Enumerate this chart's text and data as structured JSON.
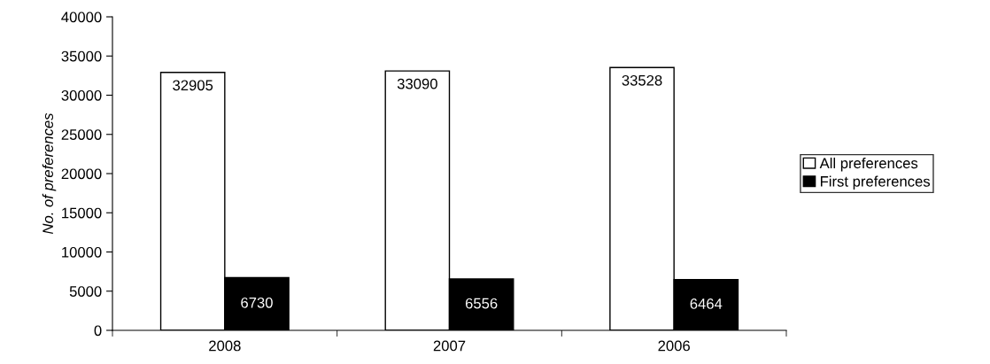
{
  "chart_data": {
    "type": "bar",
    "ylabel": "No. of preferences",
    "categories": [
      "2008",
      "2007",
      "2006"
    ],
    "series": [
      {
        "name": "All preferences",
        "color": "#ffffff",
        "values": [
          32905,
          33090,
          33528
        ]
      },
      {
        "name": "First preferences",
        "color": "#000000",
        "values": [
          6730,
          6556,
          6464
        ]
      }
    ],
    "ylim": [
      0,
      40000
    ],
    "yticks": [
      0,
      5000,
      10000,
      15000,
      20000,
      25000,
      30000,
      35000,
      40000
    ],
    "data_labels": true,
    "grid": false,
    "legend": "right"
  }
}
